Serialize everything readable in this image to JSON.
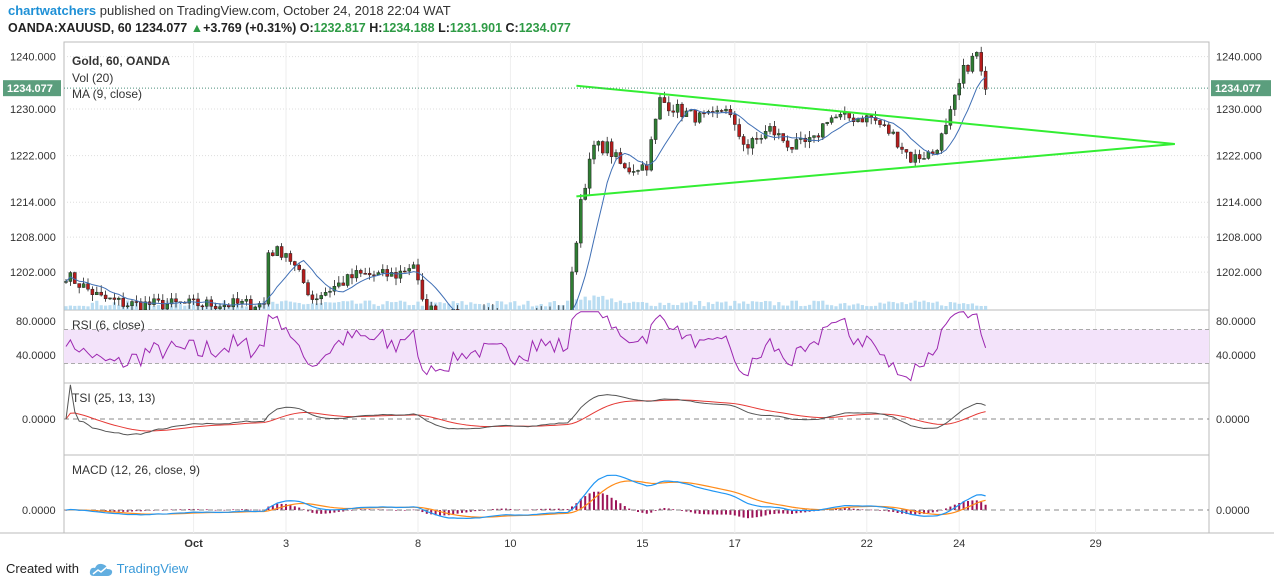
{
  "header": {
    "author": "chartwatchers",
    "published_text": " published on TradingView.com, October 24, 2018 22:04 WAT"
  },
  "quote": {
    "symbol": "OANDA:XAUUSD, 60",
    "last": "1234.077",
    "change": "+3.769 (+0.31%)",
    "o_label": "O:",
    "o": "1232.817",
    "h_label": "H:",
    "h": "1234.188",
    "l_label": "L:",
    "l": "1231.901",
    "c_label": "C:",
    "c": "1234.077"
  },
  "footer": {
    "created_with": "Created with",
    "brand": "TradingView"
  },
  "colors": {
    "up": "#2e7d32",
    "down": "#b71c1c",
    "ma": "#3f6fb5",
    "trend": "#33ee33",
    "volume": "#a9d4ef",
    "rsi": "#9c27b0",
    "rsi_band": "#f3e3fa",
    "tsi": "#555555",
    "tsi_signal": "#e53935",
    "macd": "#2196f3",
    "macd_signal": "#ff8c1a",
    "hist": "#9c1458",
    "last_price_tag": "#5b9e7d",
    "grid": "#dddddd"
  },
  "chart_data": [
    {
      "type": "candlestick",
      "title": "Gold, 60, OANDA",
      "indicators": [
        "Vol (20)",
        "MA (9, close)"
      ],
      "ylim": [
        1196,
        1242
      ],
      "yticks": [
        "1240.000",
        "1230.000",
        "1222.000",
        "1214.000",
        "1208.000",
        "1202.000"
      ],
      "ytick_values": [
        1239.5,
        1230.5,
        1222.5,
        1214.5,
        1208.5,
        1202.5
      ],
      "last_price": "1234.077",
      "last_price_value": 1234.077,
      "x_labels": [
        "Oct",
        "3",
        "8",
        "10",
        "15",
        "17",
        "22",
        "24",
        "29"
      ],
      "x_label_index": [
        29,
        50,
        80,
        101,
        131,
        152,
        182,
        203,
        234
      ],
      "n_bars": 210,
      "close_anchors": [
        [
          0,
          1202
        ],
        [
          8,
          1198
        ],
        [
          14,
          1197
        ],
        [
          24,
          1197
        ],
        [
          45,
          1197
        ],
        [
          46,
          1206
        ],
        [
          50,
          1206
        ],
        [
          56,
          1198
        ],
        [
          66,
          1202
        ],
        [
          75,
          1202
        ],
        [
          79,
          1204
        ],
        [
          81,
          1197
        ],
        [
          85,
          1195
        ],
        [
          114,
          1195
        ],
        [
          117,
          1215
        ],
        [
          120,
          1224
        ],
        [
          123,
          1224
        ],
        [
          127,
          1220
        ],
        [
          132,
          1221
        ],
        [
          135,
          1232
        ],
        [
          140,
          1230
        ],
        [
          144,
          1229
        ],
        [
          147,
          1229
        ],
        [
          150,
          1231
        ],
        [
          152,
          1227
        ],
        [
          155,
          1224
        ],
        [
          160,
          1227
        ],
        [
          165,
          1224
        ],
        [
          170,
          1225
        ],
        [
          173,
          1229
        ],
        [
          178,
          1229
        ],
        [
          183,
          1229
        ],
        [
          188,
          1226
        ],
        [
          192,
          1222
        ],
        [
          197,
          1223
        ],
        [
          200,
          1227
        ],
        [
          204,
          1237
        ],
        [
          207,
          1240
        ],
        [
          209,
          1233
        ],
        [
          213,
          1232
        ],
        [
          218,
          1230
        ],
        [
          221,
          1228
        ],
        [
          223,
          1231
        ],
        [
          225,
          1234
        ]
      ],
      "trendlines": [
        {
          "from": [
            116,
            1234.5
          ],
          "to": [
            252,
            1224.5
          ]
        },
        {
          "from": [
            116,
            1215.5
          ],
          "to": [
            252,
            1224.5
          ]
        }
      ]
    },
    {
      "type": "line",
      "title": "RSI (6, close)",
      "ylim": [
        7,
        93
      ],
      "yticks": [
        "80.0000",
        "40.0000"
      ],
      "ytick_values": [
        80,
        40
      ],
      "bands": [
        70,
        30
      ]
    },
    {
      "type": "line",
      "title": "TSI (25, 13, 13)",
      "ylim": [
        -40,
        40
      ],
      "yticks": [
        "0.0000"
      ],
      "ytick_values": [
        0
      ]
    },
    {
      "type": "line",
      "title": "MACD (12, 26, close, 9)",
      "ylim": [
        -5,
        12
      ],
      "yticks": [
        "0.0000"
      ],
      "ytick_values": [
        0
      ]
    }
  ]
}
